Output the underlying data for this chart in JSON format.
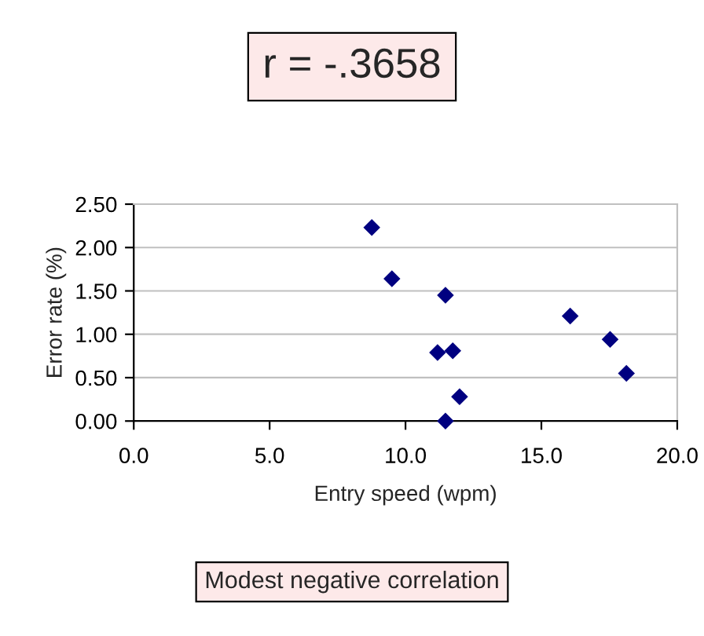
{
  "chart_data": {
    "type": "scatter",
    "title": "r = -.3658",
    "xlabel": "Entry speed (wpm)",
    "ylabel": "Error rate (%)",
    "annotations": [
      "Modest negative correlation"
    ],
    "x": [
      8.76,
      9.5,
      11.47,
      16.06,
      17.53,
      18.13,
      11.18,
      11.74,
      11.99,
      11.47
    ],
    "series": [
      {
        "color": "#000080",
        "values": [
          2.23,
          1.64,
          1.45,
          1.21,
          0.94,
          0.55,
          0.79,
          0.81,
          0.28,
          0.0
        ]
      }
    ],
    "xlim": [
      0,
      20
    ],
    "xticks": [
      {
        "value": 0,
        "label": "0.0"
      },
      {
        "value": 5,
        "label": "5.0"
      },
      {
        "value": 10,
        "label": "10.0"
      },
      {
        "value": 15,
        "label": "15.0"
      },
      {
        "value": 20,
        "label": "20.0"
      }
    ],
    "ylim": [
      0,
      2.5
    ],
    "yticks": [
      {
        "value": 0,
        "label": "0.00"
      },
      {
        "value": 0.5,
        "label": "0.50"
      },
      {
        "value": 1,
        "label": "1.00"
      },
      {
        "value": 1.5,
        "label": "1.50"
      },
      {
        "value": 2,
        "label": "2.00"
      },
      {
        "value": 2.5,
        "label": "2.50"
      }
    ],
    "grid": "y",
    "marker": "diamond"
  }
}
